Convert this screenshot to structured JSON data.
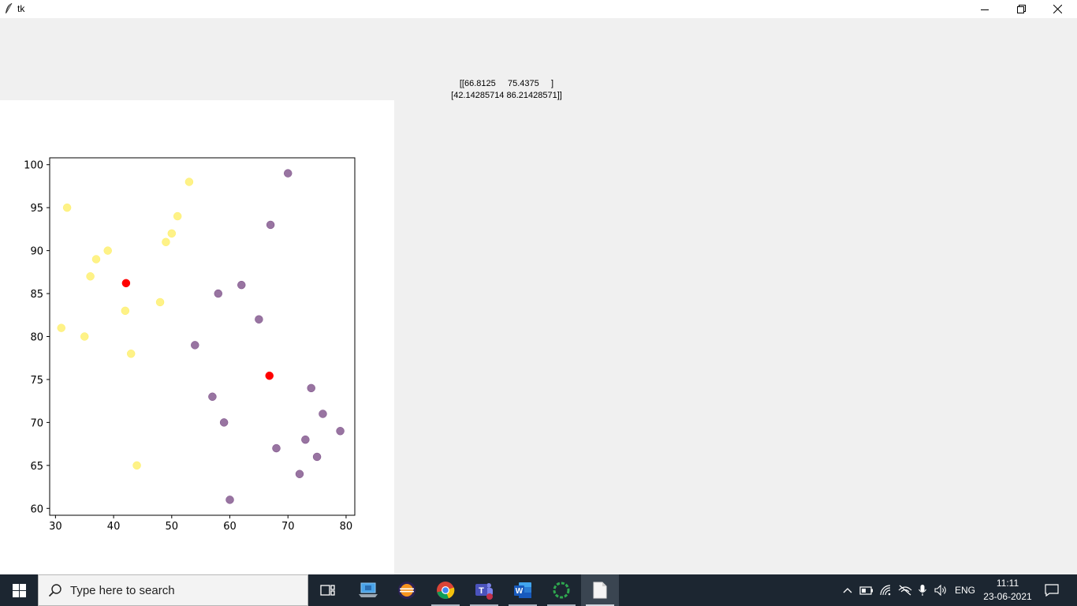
{
  "window": {
    "title": "tk",
    "icons": {
      "app": "feather-icon",
      "minimize": "minimize-icon",
      "restore": "restore-icon",
      "close": "close-icon"
    }
  },
  "label": {
    "line1": "[[66.8125     75.4375     ]",
    "line2": "[42.14285714 86.21428571]]"
  },
  "chart_data": {
    "type": "scatter",
    "xlim": [
      29,
      81.5
    ],
    "ylim": [
      59.2,
      100.8
    ],
    "x_ticks": [
      30,
      40,
      50,
      60,
      70,
      80
    ],
    "y_ticks": [
      60,
      65,
      70,
      75,
      80,
      85,
      90,
      95,
      100
    ],
    "grid": false,
    "series": [
      {
        "color": "#fde725",
        "points": [
          [
            31,
            81
          ],
          [
            32,
            95
          ],
          [
            35,
            80
          ],
          [
            36,
            87
          ],
          [
            37,
            89
          ],
          [
            39,
            90
          ],
          [
            42,
            83
          ],
          [
            43,
            78
          ],
          [
            44,
            65
          ],
          [
            48,
            84
          ],
          [
            49,
            91
          ],
          [
            50,
            92
          ],
          [
            51,
            94
          ],
          [
            53,
            98
          ]
        ]
      },
      {
        "color": "#440154",
        "points": [
          [
            54,
            79
          ],
          [
            57,
            73
          ],
          [
            58,
            85
          ],
          [
            59,
            70
          ],
          [
            60,
            61
          ],
          [
            62,
            86
          ],
          [
            65,
            82
          ],
          [
            67,
            93
          ],
          [
            68,
            67
          ],
          [
            70,
            99
          ],
          [
            72,
            64
          ],
          [
            73,
            68
          ],
          [
            74,
            74
          ],
          [
            75,
            66
          ],
          [
            76,
            71
          ],
          [
            79,
            69
          ]
        ]
      },
      {
        "color": "#ff0000",
        "points": [
          [
            66.8125,
            75.4375
          ],
          [
            42.14285714,
            86.21428571
          ]
        ]
      }
    ]
  },
  "taskbar": {
    "search_placeholder": "Type here to search",
    "language": "ENG",
    "time": "11:11",
    "date": "23-06-2021",
    "icons": [
      "windows-start-icon",
      "search-icon",
      "task-view-icon",
      "laptop-app-icon",
      "eclipse-icon",
      "chrome-icon",
      "teams-icon",
      "word-icon",
      "loading-app-icon",
      "notepad-icon"
    ],
    "tray_icons": [
      "chevron-up-icon",
      "battery-icon",
      "wifi-icon",
      "network-icon",
      "microphone-icon",
      "volume-icon",
      "notification-icon"
    ]
  }
}
